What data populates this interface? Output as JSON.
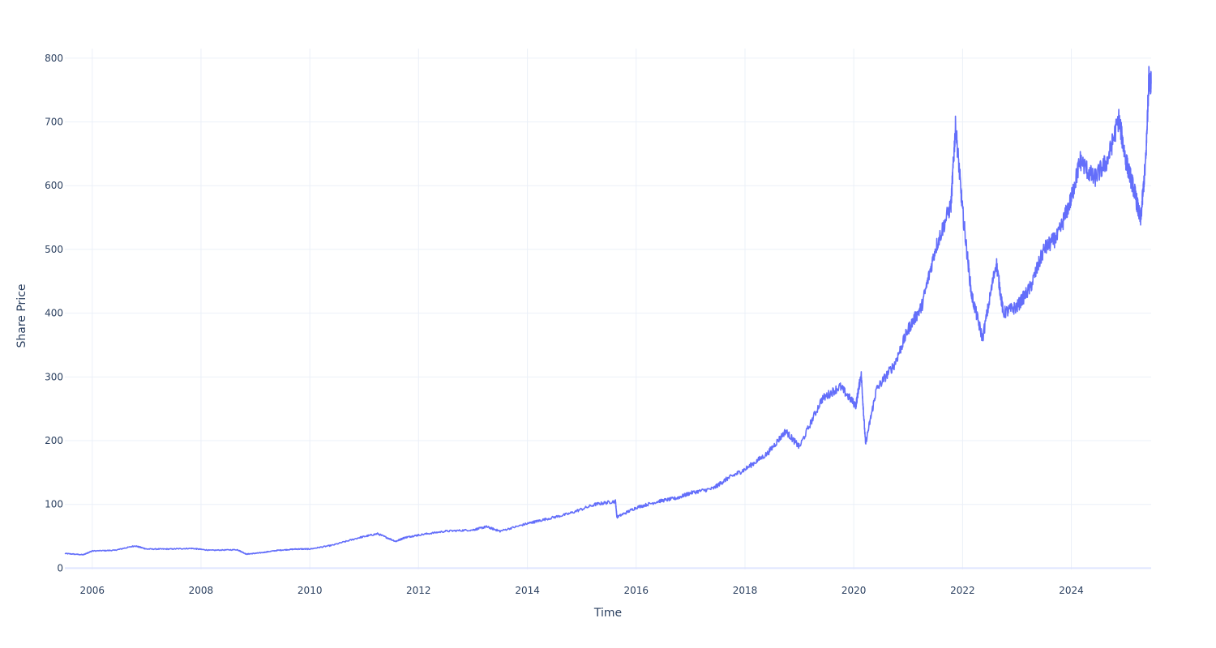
{
  "chart_data": {
    "type": "line",
    "title": "",
    "xlabel": "Time",
    "ylabel": "Share Price",
    "xlim": [
      "2005-07-01",
      "2025-06-20"
    ],
    "ylim": [
      -2,
      815
    ],
    "x_ticks": [
      "2006",
      "2008",
      "2010",
      "2012",
      "2014",
      "2016",
      "2018",
      "2020",
      "2022",
      "2024"
    ],
    "y_ticks": [
      0,
      100,
      200,
      300,
      400,
      500,
      600,
      700,
      800
    ],
    "grid": true,
    "legend": "none",
    "line_color": "#636efa",
    "series": [
      {
        "x": [
          "2005-07-01",
          "2005-11-01",
          "2006-01-01",
          "2006-06-01",
          "2006-10-15",
          "2007-01-01",
          "2007-06-01",
          "2007-11-01",
          "2008-03-01",
          "2008-09-01",
          "2008-11-01",
          "2009-02-01",
          "2009-06-01",
          "2009-10-01",
          "2010-01-01",
          "2010-06-01",
          "2010-12-01",
          "2011-04-01",
          "2011-08-01",
          "2011-10-01",
          "2012-01-01",
          "2012-07-01",
          "2013-01-01",
          "2013-04-01",
          "2013-07-01",
          "2014-01-01",
          "2014-04-01",
          "2014-10-01",
          "2015-04-01",
          "2015-08-15",
          "2015-08-25",
          "2016-01-01",
          "2016-06-01",
          "2016-10-01",
          "2017-01-01",
          "2017-06-01",
          "2017-09-01",
          "2018-01-01",
          "2018-06-01",
          "2018-10-01",
          "2019-01-01",
          "2019-06-01",
          "2019-10-01",
          "2020-01-15",
          "2020-02-20",
          "2020-03-20",
          "2020-06-01",
          "2020-10-01",
          "2021-01-01",
          "2021-04-01",
          "2021-07-01",
          "2021-10-15",
          "2021-11-15",
          "2022-01-01",
          "2022-03-01",
          "2022-05-15",
          "2022-08-15",
          "2022-10-01",
          "2023-01-01",
          "2023-04-01",
          "2023-07-01",
          "2023-10-01",
          "2024-01-01",
          "2024-03-01",
          "2024-06-01",
          "2024-09-01",
          "2024-11-15",
          "2025-01-01",
          "2025-03-01",
          "2025-04-10",
          "2025-05-15",
          "2025-06-05",
          "2025-06-20"
        ],
        "y": [
          23,
          21,
          27,
          28,
          35,
          30,
          30,
          31,
          28,
          29,
          22,
          24,
          28,
          30,
          30,
          36,
          48,
          54,
          42,
          48,
          52,
          58,
          60,
          65,
          58,
          70,
          75,
          85,
          100,
          105,
          80,
          95,
          105,
          110,
          118,
          125,
          140,
          155,
          180,
          215,
          190,
          265,
          285,
          255,
          305,
          195,
          280,
          320,
          375,
          410,
          500,
          570,
          695,
          560,
          430,
          360,
          480,
          400,
          410,
          440,
          500,
          520,
          580,
          640,
          610,
          640,
          705,
          640,
          590,
          545,
          640,
          770,
          760
        ]
      }
    ]
  }
}
